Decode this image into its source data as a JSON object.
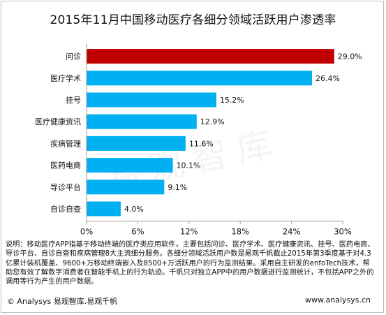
{
  "colors": {
    "highlight": "#C00000",
    "bar": "#00B0F0",
    "axis": "#999999"
  },
  "chart_data": {
    "type": "bar",
    "orientation": "horizontal",
    "title": "2015年11月中国移动医疗各细分领域活跃用户渗透率",
    "categories": [
      "问诊",
      "医疗学术",
      "挂号",
      "医疗健康资讯",
      "疾病管理",
      "医药电商",
      "导诊平台",
      "自诊自查"
    ],
    "values": [
      29.0,
      26.4,
      15.2,
      12.9,
      11.6,
      10.1,
      9.1,
      4.0
    ],
    "value_labels": [
      "29.0%",
      "26.4%",
      "15.2%",
      "12.9%",
      "11.6%",
      "10.1%",
      "9.1%",
      "4.0%"
    ],
    "highlight_index": 0,
    "xlim": [
      0,
      30
    ],
    "xticks": [
      0,
      6,
      12,
      18,
      24,
      30
    ],
    "xtick_labels": [
      "0%",
      "6%",
      "12%",
      "18%",
      "24%",
      "30%"
    ],
    "grid": false,
    "legend": "none"
  },
  "notes": "说明：移动医疗APP指基于移动终端的医疗类应用软件，主要包括问诊、医疗学术、医疗健康资讯、挂号、医药电商、导诊平台、自诊自查和疾病管理8大主流细分服务。各细分领域活跃用户数是易观千帆截止2015年第3季度基于对4.3亿累计装机覆盖、9600+万移动终端嵌入及8500+万活跃用户的行为监测结果。采用自主研发的enfoTech技术，帮助您有效了解数字消费者在智能手机上的行为轨迹。千帆只对独立APP中的用户数据进行监测统计，不包括APP之外的调用等行为产生的用户数据。",
  "footer": {
    "left": "© Analysys 易观智库.易观千帆",
    "right": "www.analysys.cn"
  },
  "watermark": "易观智库"
}
